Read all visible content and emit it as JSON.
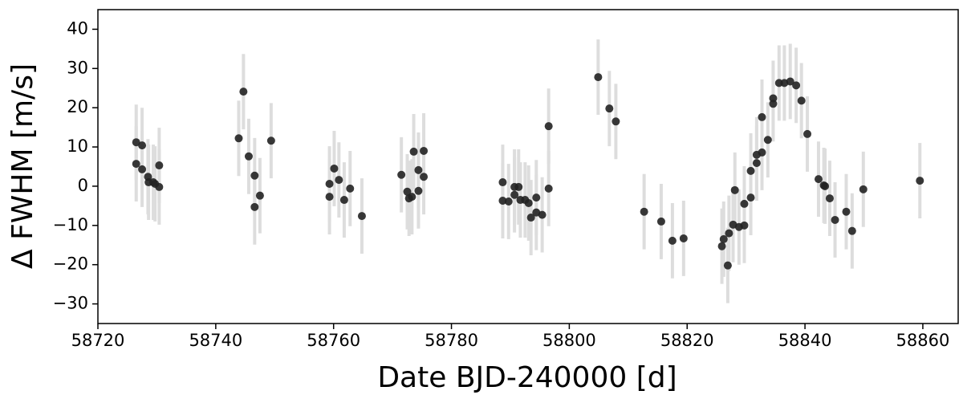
{
  "chart_data": {
    "type": "scatter",
    "xlabel": "Date BJD-240000 [d]",
    "ylabel": "Δ FWHM [m/s]",
    "xlim": [
      58720,
      58866
    ],
    "ylim": [
      -35,
      45
    ],
    "xticks": [
      58720,
      58740,
      58760,
      58780,
      58800,
      58820,
      58840,
      58860
    ],
    "yticks": [
      {
        "value": -30,
        "label": "−30"
      },
      {
        "value": -20,
        "label": "−20"
      },
      {
        "value": -10,
        "label": "−10"
      },
      0,
      10,
      20,
      30,
      40
    ],
    "color": "#222222",
    "error_color": "#dddddd",
    "yerr": 9.6,
    "x": [
      58726.5,
      58726.5,
      58727.5,
      58727.5,
      58728.5,
      58728.6,
      58729.4,
      58729.7,
      58730.4,
      58730.4,
      58743.9,
      58744.7,
      58745.6,
      58746.6,
      58746.6,
      58747.5,
      58749.4,
      58759.3,
      58759.3,
      58760.1,
      58760.9,
      58761.8,
      58762.8,
      58764.8,
      58771.5,
      58772.5,
      58772.8,
      58773.3,
      58773.6,
      58774.4,
      58774.4,
      58775.3,
      58775.3,
      58788.7,
      58788.7,
      58789.7,
      58790.7,
      58790.7,
      58791.4,
      58791.7,
      58792.5,
      58793.1,
      58793.5,
      58794.4,
      58794.4,
      58795.4,
      58796.5,
      58796.5,
      58804.9,
      58806.8,
      58807.9,
      58812.7,
      58815.6,
      58817.5,
      58819.4,
      58825.9,
      58826.2,
      58826.9,
      58827.1,
      58827.8,
      58828.1,
      58828.8,
      58829.7,
      58829.7,
      58830.8,
      58830.8,
      58831.8,
      58831.8,
      58832.7,
      58832.7,
      58833.7,
      58834.6,
      58834.6,
      58835.6,
      58836.5,
      58837.5,
      58838.5,
      58839.4,
      58840.4,
      58842.3,
      58843.2,
      58843.4,
      58844.2,
      58845.1,
      58847.0,
      58848.0,
      58849.9,
      58859.5
    ],
    "values": [
      11.2,
      5.7,
      10.4,
      4.3,
      2.4,
      1.0,
      1.0,
      0.6,
      5.3,
      -0.2,
      12.2,
      24.1,
      7.6,
      2.7,
      -5.3,
      -2.4,
      11.6,
      0.6,
      -2.7,
      4.5,
      1.6,
      -3.5,
      -0.6,
      -7.6,
      2.9,
      -1.4,
      -3.1,
      -2.7,
      8.8,
      4.1,
      -1.2,
      9.0,
      2.4,
      1.0,
      -3.7,
      -3.9,
      -0.2,
      -2.2,
      -0.2,
      -3.5,
      -3.5,
      -4.3,
      -8.0,
      -6.7,
      -2.9,
      -7.3,
      -0.6,
      15.3,
      27.8,
      19.8,
      16.5,
      -6.5,
      -9.0,
      -13.9,
      -13.3,
      -15.3,
      -13.5,
      -20.2,
      -12.0,
      -9.8,
      -1.0,
      -10.4,
      -10.0,
      -4.5,
      3.9,
      -2.9,
      8.0,
      5.9,
      8.6,
      17.6,
      11.8,
      21.0,
      22.4,
      26.3,
      26.3,
      26.7,
      25.7,
      21.8,
      13.3,
      1.8,
      0.2,
      0.0,
      -3.1,
      -8.6,
      -6.5,
      -11.4,
      -0.8,
      1.4
    ]
  }
}
